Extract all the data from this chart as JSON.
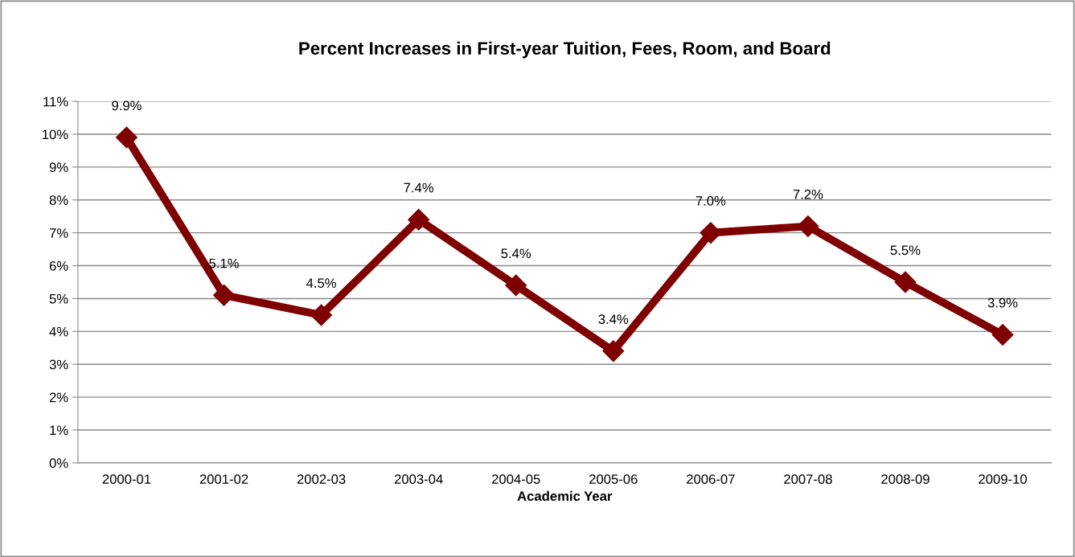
{
  "chart_data": {
    "type": "line",
    "title": "Percent Increases in First-year Tuition, Fees, Room, and Board",
    "xlabel": "Academic Year",
    "categories": [
      "2000-01",
      "2001-02",
      "2002-03",
      "2003-04",
      "2004-05",
      "2005-06",
      "2006-07",
      "2007-08",
      "2008-09",
      "2009-10"
    ],
    "series": [
      {
        "color": "#7f0000",
        "values": [
          9.9,
          5.1,
          4.5,
          7.4,
          5.4,
          3.4,
          7.0,
          7.2,
          5.5,
          3.9
        ],
        "value_labels": [
          "9.9%",
          "5.1%",
          "4.5%",
          "7.4%",
          "5.4%",
          "3.4%",
          "7.0%",
          "7.2%",
          "5.5%",
          "3.9%"
        ]
      }
    ],
    "ylim": [
      0,
      11
    ],
    "yticks": [
      {
        "value": 0,
        "label": "0%"
      },
      {
        "value": 1,
        "label": "1%"
      },
      {
        "value": 2,
        "label": "2%"
      },
      {
        "value": 3,
        "label": "3%"
      },
      {
        "value": 4,
        "label": "4%"
      },
      {
        "value": 5,
        "label": "5%"
      },
      {
        "value": 6,
        "label": "6%"
      },
      {
        "value": 7,
        "label": "7%"
      },
      {
        "value": 8,
        "label": "8%"
      },
      {
        "value": 9,
        "label": "9%"
      },
      {
        "value": 10,
        "label": "10%"
      },
      {
        "value": 11,
        "label": "11%"
      }
    ],
    "grid": "y",
    "marker": "diamond",
    "line_style": "solid",
    "legend": false
  }
}
